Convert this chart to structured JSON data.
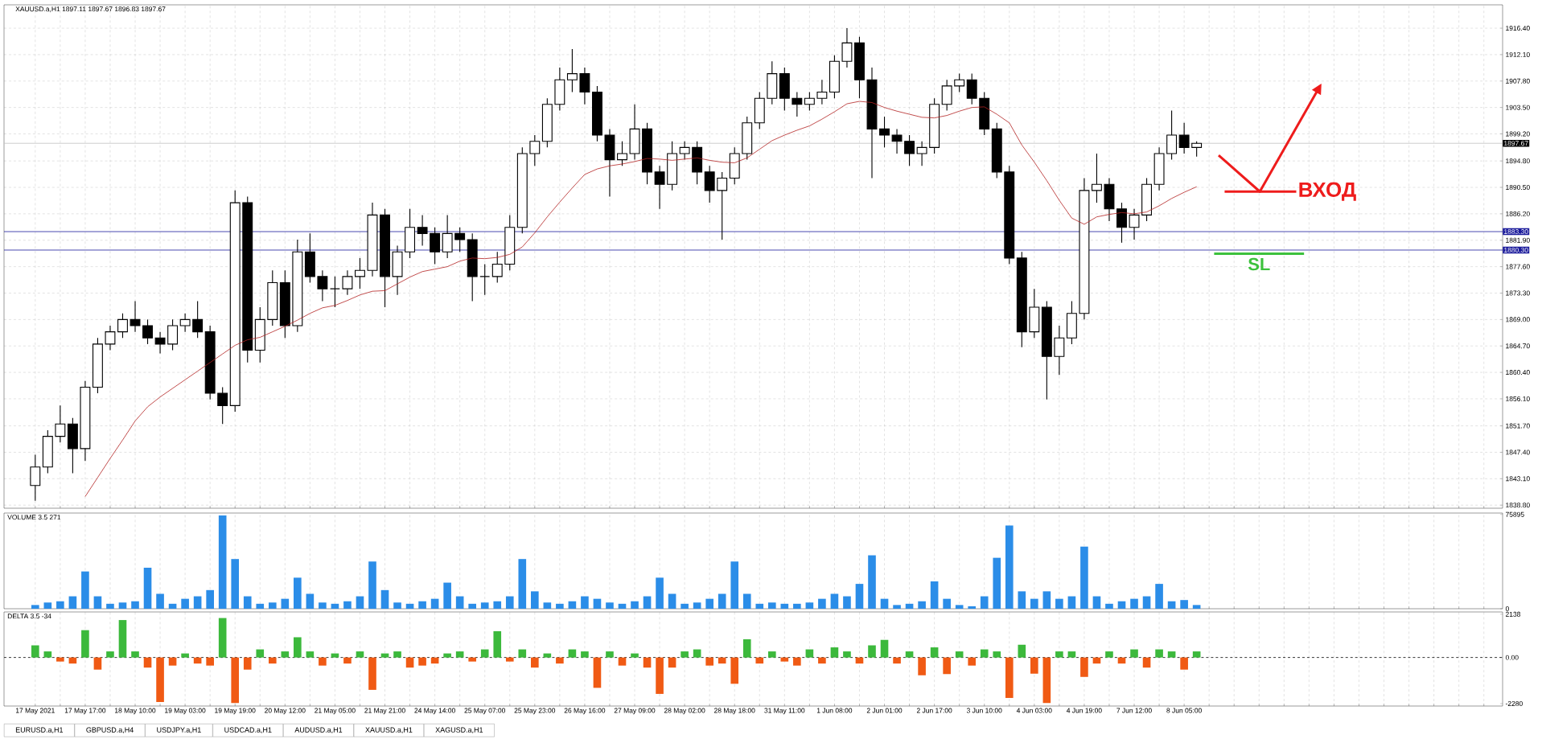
{
  "chart_data": [
    {
      "type": "candlestick",
      "title": "XAUUSD.a,H1  1897.11 1897.67 1896.83 1897.67",
      "ohlc": [
        [
          1842,
          1847,
          1839.5,
          1845
        ],
        [
          1845,
          1851,
          1844,
          1850
        ],
        [
          1850,
          1855,
          1849,
          1852
        ],
        [
          1852,
          1853,
          1844,
          1848
        ],
        [
          1848,
          1859,
          1846,
          1858
        ],
        [
          1858,
          1866,
          1857,
          1865
        ],
        [
          1865,
          1868,
          1864,
          1867
        ],
        [
          1867,
          1870,
          1866,
          1869
        ],
        [
          1869,
          1872,
          1867,
          1868
        ],
        [
          1868,
          1869,
          1865,
          1866
        ],
        [
          1866,
          1867,
          1863.5,
          1865
        ],
        [
          1865,
          1869,
          1864,
          1868
        ],
        [
          1868,
          1870,
          1867,
          1869
        ],
        [
          1869,
          1872,
          1866,
          1867
        ],
        [
          1867,
          1868,
          1856,
          1857
        ],
        [
          1857,
          1858,
          1852,
          1855
        ],
        [
          1855,
          1890,
          1854,
          1888
        ],
        [
          1888,
          1889,
          1862,
          1864
        ],
        [
          1864,
          1871,
          1862,
          1869
        ],
        [
          1869,
          1877,
          1868,
          1875
        ],
        [
          1875,
          1877,
          1866,
          1868
        ],
        [
          1868,
          1882,
          1867,
          1880
        ],
        [
          1880,
          1883,
          1875,
          1876
        ],
        [
          1876,
          1877,
          1872,
          1874
        ],
        [
          1874,
          1876,
          1871,
          1874
        ],
        [
          1874,
          1877,
          1873,
          1876
        ],
        [
          1876,
          1879,
          1874,
          1877
        ],
        [
          1877,
          1888,
          1876,
          1886
        ],
        [
          1886,
          1887,
          1871,
          1876
        ],
        [
          1876,
          1881,
          1873,
          1880
        ],
        [
          1880,
          1887,
          1879,
          1884
        ],
        [
          1884,
          1886,
          1881,
          1883
        ],
        [
          1883,
          1884,
          1878,
          1880
        ],
        [
          1880,
          1886,
          1879,
          1883
        ],
        [
          1883,
          1884,
          1880,
          1882
        ],
        [
          1882,
          1883,
          1872,
          1876
        ],
        [
          1876,
          1878,
          1873,
          1876
        ],
        [
          1876,
          1880,
          1875,
          1878
        ],
        [
          1878,
          1886,
          1877,
          1884
        ],
        [
          1884,
          1897,
          1883,
          1896
        ],
        [
          1896,
          1899,
          1894,
          1898
        ],
        [
          1898,
          1905,
          1897,
          1904
        ],
        [
          1904,
          1910,
          1903,
          1908
        ],
        [
          1908,
          1913,
          1906,
          1909
        ],
        [
          1909,
          1910,
          1904,
          1906
        ],
        [
          1906,
          1907,
          1898,
          1899
        ],
        [
          1899,
          1900,
          1889,
          1895
        ],
        [
          1895,
          1898,
          1894,
          1896
        ],
        [
          1896,
          1904,
          1895,
          1900
        ],
        [
          1900,
          1901,
          1891,
          1893
        ],
        [
          1893,
          1894,
          1887,
          1891
        ],
        [
          1891,
          1898,
          1890,
          1896
        ],
        [
          1896,
          1898,
          1895,
          1897
        ],
        [
          1897,
          1898,
          1891,
          1893
        ],
        [
          1893,
          1894,
          1888,
          1890
        ],
        [
          1890,
          1893,
          1882,
          1892
        ],
        [
          1892,
          1897,
          1891,
          1896
        ],
        [
          1896,
          1902,
          1895,
          1901
        ],
        [
          1901,
          1906,
          1900,
          1905
        ],
        [
          1905,
          1911,
          1904,
          1909
        ],
        [
          1909,
          1910,
          1903,
          1905
        ],
        [
          1905,
          1906,
          1902,
          1904
        ],
        [
          1904,
          1906,
          1903,
          1905
        ],
        [
          1905,
          1908,
          1904,
          1906
        ],
        [
          1906,
          1912,
          1905,
          1911
        ],
        [
          1911,
          1916.4,
          1910,
          1914
        ],
        [
          1914,
          1915,
          1905,
          1908
        ],
        [
          1908,
          1910,
          1892,
          1900
        ],
        [
          1900,
          1902,
          1897,
          1899
        ],
        [
          1899,
          1900,
          1896,
          1898
        ],
        [
          1898,
          1899,
          1894,
          1896
        ],
        [
          1896,
          1898,
          1894,
          1897
        ],
        [
          1897,
          1905,
          1896,
          1904
        ],
        [
          1904,
          1908,
          1903,
          1907
        ],
        [
          1907,
          1909,
          1906,
          1908
        ],
        [
          1908,
          1909,
          1904,
          1905
        ],
        [
          1905,
          1906,
          1899,
          1900
        ],
        [
          1900,
          1901,
          1892,
          1893
        ],
        [
          1893,
          1894,
          1878,
          1879
        ],
        [
          1879,
          1880,
          1864.5,
          1867
        ],
        [
          1867,
          1874,
          1866,
          1871
        ],
        [
          1871,
          1872,
          1856,
          1863
        ],
        [
          1863,
          1868,
          1860,
          1866
        ],
        [
          1866,
          1872,
          1865,
          1870
        ],
        [
          1870,
          1892,
          1869,
          1890
        ],
        [
          1890,
          1896,
          1888,
          1891
        ],
        [
          1891,
          1892,
          1885,
          1887
        ],
        [
          1887,
          1888,
          1881.5,
          1884
        ],
        [
          1884,
          1887,
          1882,
          1886
        ],
        [
          1886,
          1892,
          1885,
          1891
        ],
        [
          1891,
          1897,
          1890,
          1896
        ],
        [
          1896,
          1903,
          1895,
          1899
        ],
        [
          1899,
          1901,
          1896,
          1897
        ],
        [
          1897,
          1898,
          1895.5,
          1897.67
        ],
        null,
        null,
        null,
        null,
        null,
        null,
        null,
        null,
        null,
        null,
        null,
        null,
        null,
        null,
        null,
        null,
        null,
        null,
        null,
        null,
        null,
        null,
        null,
        null
      ],
      "series": [
        {
          "type": "line",
          "color": "#b22222",
          "values": [
            null,
            null,
            null,
            null,
            1840.2,
            1843.3,
            1846.4,
            1849.4,
            1852.5,
            1854.8,
            1856.4,
            1857.8,
            1859.2,
            1860.6,
            1862.0,
            1863.4,
            1864.8,
            1865.7,
            1866.1,
            1867.0,
            1867.9,
            1868.9,
            1870.0,
            1870.9,
            1871.3,
            1872.1,
            1873.0,
            1873.6,
            1873.7,
            1874.8,
            1875.9,
            1876.8,
            1877.2,
            1877.6,
            1878.5,
            1879.0,
            1878.9,
            1879.1,
            1879.6,
            1880.8,
            1883.1,
            1885.7,
            1888.1,
            1890.4,
            1892.6,
            1893.5,
            1894.0,
            1894.3,
            1894.7,
            1895.2,
            1895.1,
            1894.9,
            1895.1,
            1895.3,
            1894.9,
            1894.6,
            1894.5,
            1895.3,
            1896.7,
            1898.1,
            1899.0,
            1899.8,
            1900.5,
            1901.6,
            1902.8,
            1904.1,
            1904.5,
            1904.3,
            1903.5,
            1902.9,
            1902.4,
            1901.9,
            1901.8,
            1902.2,
            1902.9,
            1903.5,
            1903.6,
            1902.4,
            1901.0,
            1897.4,
            1894.6,
            1891.6,
            1888.4,
            1885.5,
            1884.5,
            1885.7,
            1886.1,
            1886.4,
            1886.2,
            1886.5,
            1887.5,
            1888.7,
            1889.7,
            1890.6,
            null,
            null,
            null,
            null,
            null,
            null,
            null,
            null,
            null,
            null,
            null,
            null,
            null,
            null,
            null,
            null,
            null,
            null,
            null,
            null,
            null,
            null,
            null,
            null
          ]
        }
      ],
      "ylim": [
        1838.3,
        1920.2
      ],
      "yticks": [
        {
          "value": 1838.8,
          "label": "1838.80"
        },
        {
          "value": 1843.1,
          "label": "1843.10"
        },
        {
          "value": 1847.4,
          "label": "1847.40"
        },
        {
          "value": 1851.7,
          "label": "1851.70"
        },
        {
          "value": 1856.1,
          "label": "1856.10"
        },
        {
          "value": 1860.4,
          "label": "1860.40"
        },
        {
          "value": 1864.7,
          "label": "1864.70"
        },
        {
          "value": 1869.0,
          "label": "1869.00"
        },
        {
          "value": 1873.3,
          "label": "1873.30"
        },
        {
          "value": 1877.6,
          "label": "1877.60"
        },
        {
          "value": 1881.9,
          "label": "1881.90"
        },
        {
          "value": 1886.2,
          "label": "1886.20"
        },
        {
          "value": 1890.5,
          "label": "1890.50"
        },
        {
          "value": 1894.8,
          "label": "1894.80"
        },
        {
          "value": 1899.2,
          "label": "1899.20"
        },
        {
          "value": 1903.5,
          "label": "1903.50"
        },
        {
          "value": 1907.8,
          "label": "1907.80"
        },
        {
          "value": 1912.1,
          "label": "1912.10"
        },
        {
          "value": 1916.4,
          "label": "1916.40"
        }
      ],
      "tick_labels": "y",
      "grid": true,
      "ref_lines": [
        {
          "axis": "y",
          "value": 1897.67,
          "label": "1897.67",
          "color": "#c0c0c0"
        },
        {
          "axis": "y",
          "value": 1883.3,
          "label": "1883.30",
          "color": "#1c1c9c"
        },
        {
          "axis": "y",
          "value": 1880.3,
          "label": "1880.30",
          "color": "#1c1c9c"
        },
        {
          "axis": "y",
          "value": 1879.7,
          "label": "SL",
          "color": "#3cc13c"
        }
      ],
      "annotations": [
        "ВХОД"
      ]
    },
    {
      "type": "bar",
      "title": "VOLUME 3.5 271",
      "values": [
        3000,
        5000,
        6000,
        10000,
        30000,
        10000,
        4000,
        5000,
        6000,
        33000,
        12000,
        4000,
        8000,
        10000,
        15000,
        75000,
        40000,
        10000,
        4000,
        5000,
        8000,
        25000,
        12000,
        5000,
        4000,
        6000,
        10000,
        38000,
        15000,
        5000,
        4000,
        6000,
        8000,
        21000,
        10000,
        4000,
        5000,
        6000,
        10000,
        40000,
        14000,
        5000,
        4000,
        6000,
        10000,
        8000,
        5000,
        4000,
        6000,
        10000,
        25000,
        12000,
        4000,
        5000,
        8000,
        12000,
        38000,
        12000,
        4000,
        5000,
        4000,
        4000,
        5000,
        8000,
        12000,
        10000,
        20000,
        43000,
        8000,
        3000,
        4000,
        6000,
        22000,
        8000,
        3000,
        2000,
        10000,
        41000,
        67000,
        14000,
        8000,
        14000,
        8000,
        10000,
        50000,
        10000,
        4000,
        6000,
        8000,
        10000,
        20000,
        6000,
        7000,
        3000,
        null,
        null,
        null,
        null,
        null,
        null,
        null,
        null,
        null,
        null,
        null,
        null,
        null,
        null,
        null,
        null,
        null,
        null,
        null,
        null,
        null,
        null,
        null,
        null
      ],
      "color": "#2b8de8",
      "ylim": [
        0,
        77000
      ],
      "yticks": [
        0,
        75895
      ],
      "tick_labels": "y",
      "grid": "x"
    },
    {
      "type": "bar",
      "title": "DELTA 3.5 -34",
      "categories": [
        "17 May 2021",
        null,
        null,
        null,
        "17 May 17:00",
        null,
        null,
        null,
        "18 May 10:00",
        null,
        null,
        null,
        "19 May 03:00",
        null,
        null,
        null,
        "19 May 19:00",
        null,
        null,
        null,
        "20 May 12:00",
        null,
        null,
        null,
        "21 May 05:00",
        null,
        null,
        null,
        "21 May 21:00",
        null,
        null,
        null,
        "24 May 14:00",
        null,
        null,
        null,
        "25 May 07:00",
        null,
        null,
        null,
        "25 May 23:00",
        null,
        null,
        null,
        "26 May 16:00",
        null,
        null,
        null,
        "27 May 09:00",
        null,
        null,
        null,
        "28 May 02:00",
        null,
        null,
        null,
        "28 May 18:00",
        null,
        null,
        null,
        "31 May 11:00",
        null,
        null,
        null,
        "1 Jun 08:00",
        null,
        null,
        null,
        "2 Jun 01:00",
        null,
        null,
        null,
        "2 Jun 17:00",
        null,
        null,
        null,
        "3 Jun 10:00",
        null,
        null,
        null,
        "4 Jun 03:00",
        null,
        null,
        null,
        "4 Jun 19:00",
        null,
        null,
        null,
        "7 Jun 12:00",
        null,
        null,
        null,
        "8 Jun 05:00",
        null,
        null,
        null,
        null,
        null,
        null,
        null,
        null,
        null,
        null,
        null,
        null,
        null,
        null,
        null,
        null,
        null,
        null,
        null,
        null,
        null,
        null,
        null,
        null,
        null
      ],
      "values": [
        600,
        300,
        -200,
        -300,
        1350,
        -600,
        300,
        1850,
        300,
        -500,
        -2200,
        -400,
        200,
        -300,
        -400,
        1950,
        -2250,
        -600,
        400,
        -300,
        300,
        1000,
        300,
        -400,
        200,
        -300,
        300,
        -1600,
        200,
        300,
        -500,
        -400,
        -300,
        200,
        300,
        -200,
        400,
        1300,
        -200,
        400,
        -500,
        200,
        -300,
        400,
        300,
        -1500,
        300,
        -400,
        200,
        -500,
        -1800,
        -500,
        300,
        400,
        -400,
        -300,
        -1300,
        900,
        -300,
        300,
        -200,
        -400,
        400,
        -300,
        500,
        300,
        -300,
        600,
        870,
        -300,
        300,
        -880,
        500,
        -820,
        300,
        -400,
        400,
        300,
        -2000,
        630,
        -800,
        -2250,
        300,
        300,
        -960,
        -300,
        300,
        -300,
        400,
        -500,
        400,
        300,
        -600,
        300,
        null,
        null,
        null,
        null,
        null,
        null,
        null,
        null,
        null,
        null,
        null,
        null,
        null,
        null,
        null,
        null,
        null,
        null,
        null,
        null,
        null,
        null,
        null,
        null
      ],
      "colors": [
        "#3cb93c",
        "#3cb93c",
        "#f05a14",
        "#f05a14",
        "#3cb93c",
        "#f05a14",
        "#3cb93c",
        "#3cb93c",
        "#3cb93c",
        "#f05a14",
        "#f05a14",
        "#f05a14",
        "#3cb93c",
        "#f05a14",
        "#f05a14",
        "#3cb93c",
        "#f05a14",
        "#f05a14",
        "#3cb93c",
        "#f05a14",
        "#3cb93c",
        "#3cb93c",
        "#3cb93c",
        "#f05a14",
        "#3cb93c",
        "#f05a14",
        "#3cb93c",
        "#f05a14",
        "#3cb93c",
        "#3cb93c",
        "#f05a14",
        "#f05a14",
        "#f05a14",
        "#3cb93c",
        "#3cb93c",
        "#f05a14",
        "#3cb93c",
        "#3cb93c",
        "#f05a14",
        "#3cb93c",
        "#f05a14",
        "#3cb93c",
        "#f05a14",
        "#3cb93c",
        "#3cb93c",
        "#f05a14",
        "#3cb93c",
        "#f05a14",
        "#3cb93c",
        "#f05a14",
        "#f05a14",
        "#f05a14",
        "#3cb93c",
        "#3cb93c",
        "#f05a14",
        "#f05a14",
        "#f05a14",
        "#3cb93c",
        "#f05a14",
        "#3cb93c",
        "#f05a14",
        "#f05a14",
        "#3cb93c",
        "#f05a14",
        "#3cb93c",
        "#3cb93c",
        "#f05a14",
        "#3cb93c",
        "#3cb93c",
        "#f05a14",
        "#3cb93c",
        "#f05a14",
        "#3cb93c",
        "#f05a14",
        "#3cb93c",
        "#f05a14",
        "#3cb93c",
        "#3cb93c",
        "#f05a14",
        "#3cb93c",
        "#f05a14",
        "#f05a14",
        "#3cb93c",
        "#3cb93c",
        "#f05a14",
        "#f05a14",
        "#3cb93c",
        "#f05a14",
        "#3cb93c",
        "#f05a14",
        "#3cb93c",
        "#3cb93c",
        "#f05a14",
        "#3cb93c",
        null,
        null,
        null,
        null,
        null,
        null,
        null,
        null,
        null,
        null,
        null,
        null,
        null,
        null,
        null,
        null,
        null,
        null,
        null,
        null,
        null,
        null,
        null,
        null
      ],
      "ylim": [
        -2400,
        2250
      ],
      "yticks": [
        -2280,
        {
          "value": 0,
          "label": "0.00"
        },
        2138
      ],
      "grid": "x",
      "ref_lines": [
        {
          "axis": "y",
          "value": 0,
          "color": "#000000",
          "line_style": "dashed"
        }
      ],
      "annotations": [
        "EURUSD.a,H1",
        "GBPUSD.a,H4",
        "USDJPY.a,H1",
        "USDCAD.a,H1",
        "AUDUSD.a,H1",
        "XAUUSD.a,H1",
        "XAGUSD.a,H1"
      ]
    }
  ]
}
